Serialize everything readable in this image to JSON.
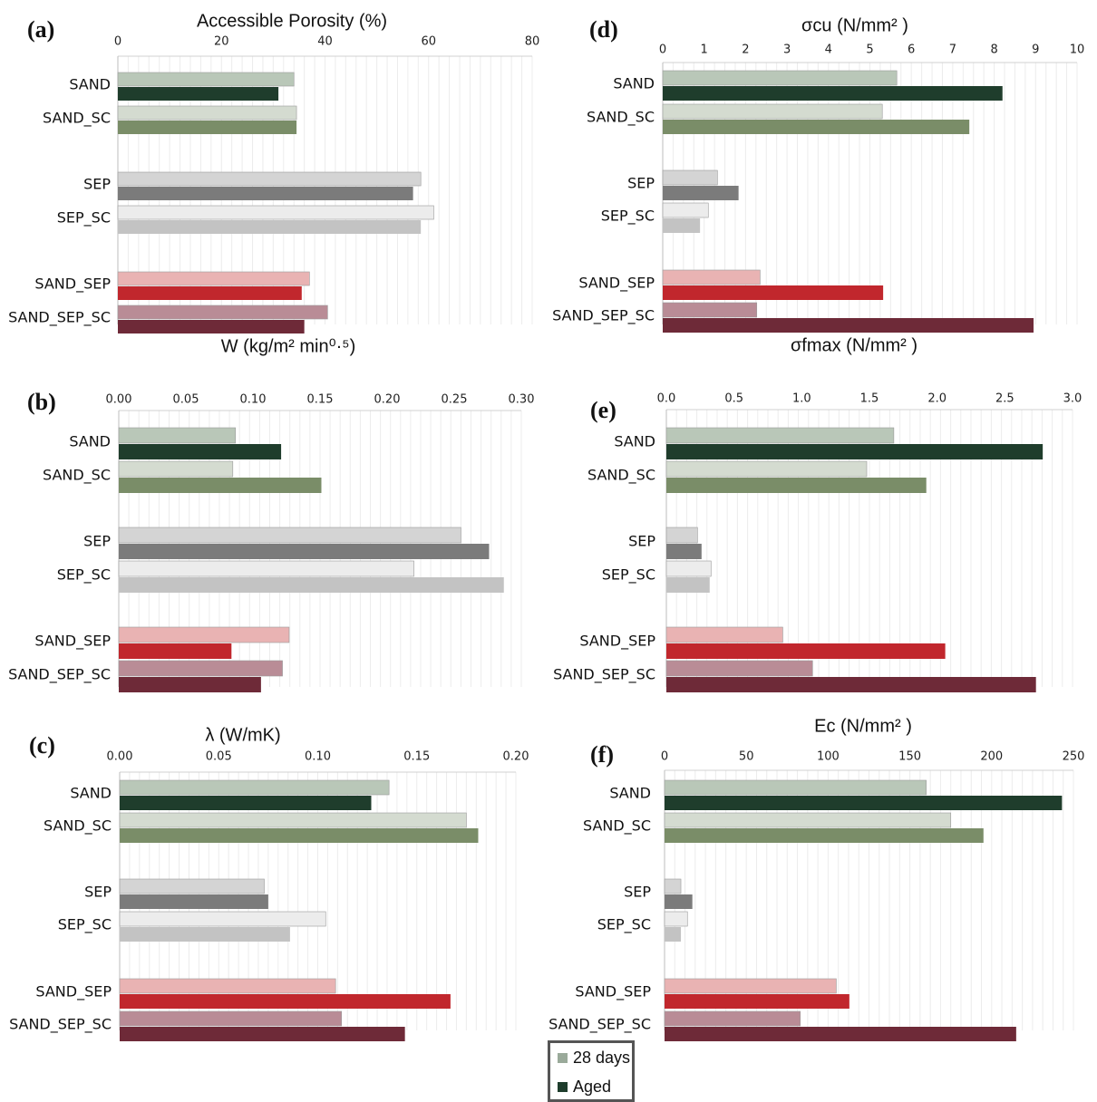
{
  "legend": {
    "items": [
      {
        "label": "28 days",
        "color": "#9aaa9a"
      },
      {
        "label": "Aged",
        "color": "#1e3d2c"
      }
    ]
  },
  "categories": [
    "SAND",
    "SAND_SC",
    "SEP",
    "SEP_SC",
    "SAND_SEP",
    "SAND_SEP_SC"
  ],
  "colors": {
    "SAND": {
      "d28": "#b9c7b8",
      "aged": "#1f3d2c"
    },
    "SAND_SC": {
      "d28": "#d4dbd0",
      "aged": "#7a8d68"
    },
    "SEP": {
      "d28": "#d4d4d4",
      "aged": "#7b7b7b"
    },
    "SEP_SC": {
      "d28": "#ececec",
      "aged": "#c3c3c3"
    },
    "SAND_SEP": {
      "d28": "#e9b3b3",
      "aged": "#c1272d"
    },
    "SAND_SEP_SC": {
      "d28": "#b98c96",
      "aged": "#6e2a38"
    }
  },
  "chart_data": [
    {
      "panel": "(a)",
      "type": "bar",
      "orientation": "horizontal",
      "title": "Accessible Porosity (%)",
      "xlim": [
        0,
        80
      ],
      "ticks": [
        "0",
        "20",
        "40",
        "60",
        "80"
      ],
      "categories": [
        "SAND",
        "SAND_SC",
        "SEP",
        "SEP_SC",
        "SAND_SEP",
        "SAND_SEP_SC"
      ],
      "series": [
        {
          "name": "28 days",
          "values": [
            34,
            34.5,
            58.5,
            61,
            37,
            40.5
          ]
        },
        {
          "name": "Aged",
          "values": [
            31,
            34.5,
            57,
            58.5,
            35.5,
            36
          ]
        }
      ]
    },
    {
      "panel": "(b)",
      "type": "bar",
      "orientation": "horizontal",
      "title": "W (kg/m² min⁰·⁵)",
      "xlim": [
        0,
        0.3
      ],
      "ticks": [
        "0.00",
        "0.05",
        "0.10",
        "0.15",
        "0.20",
        "0.25",
        "0.30"
      ],
      "categories": [
        "SAND",
        "SAND_SC",
        "SEP",
        "SEP_SC",
        "SAND_SEP",
        "SAND_SEP_SC"
      ],
      "series": [
        {
          "name": "28 days",
          "values": [
            0.087,
            0.085,
            0.255,
            0.22,
            0.127,
            0.122
          ]
        },
        {
          "name": "Aged",
          "values": [
            0.121,
            0.151,
            0.276,
            0.287,
            0.084,
            0.106
          ]
        }
      ]
    },
    {
      "panel": "(c)",
      "type": "bar",
      "orientation": "horizontal",
      "title": "λ (W/mK)",
      "xlim": [
        0,
        0.2
      ],
      "ticks": [
        "0.00",
        "0.05",
        "0.10",
        "0.15",
        "0.20"
      ],
      "categories": [
        "SAND",
        "SAND_SC",
        "SEP",
        "SEP_SC",
        "SAND_SEP",
        "SAND_SEP_SC"
      ],
      "series": [
        {
          "name": "28 days",
          "values": [
            0.136,
            0.175,
            0.073,
            0.104,
            0.109,
            0.112
          ]
        },
        {
          "name": "Aged",
          "values": [
            0.127,
            0.181,
            0.075,
            0.086,
            0.167,
            0.144
          ]
        }
      ]
    },
    {
      "panel": "(d)",
      "type": "bar",
      "orientation": "horizontal",
      "title": "σcu (N/mm² )",
      "xlim": [
        0,
        10
      ],
      "ticks": [
        "0",
        "1",
        "2",
        "3",
        "4",
        "5",
        "6",
        "7",
        "8",
        "9",
        "10"
      ],
      "categories": [
        "SAND",
        "SAND_SC",
        "SEP",
        "SEP_SC",
        "SAND_SEP",
        "SAND_SEP_SC"
      ],
      "series": [
        {
          "name": "28 days",
          "values": [
            5.65,
            5.3,
            1.32,
            1.1,
            2.35,
            2.27
          ]
        },
        {
          "name": "Aged",
          "values": [
            8.2,
            7.4,
            1.83,
            0.9,
            5.32,
            8.95
          ]
        }
      ]
    },
    {
      "panel": "(e)",
      "type": "bar",
      "orientation": "horizontal",
      "title": "σfmax (N/mm² )",
      "xlim": [
        0,
        3.0
      ],
      "ticks": [
        "0.0",
        "0.5",
        "1.0",
        "1.5",
        "2.0",
        "2.5",
        "3.0"
      ],
      "categories": [
        "SAND",
        "SAND_SC",
        "SEP",
        "SEP_SC",
        "SAND_SEP",
        "SAND_SEP_SC"
      ],
      "series": [
        {
          "name": "28 days",
          "values": [
            1.68,
            1.48,
            0.23,
            0.33,
            0.86,
            1.08
          ]
        },
        {
          "name": "Aged",
          "values": [
            2.78,
            1.92,
            0.26,
            0.32,
            2.06,
            2.73
          ]
        }
      ]
    },
    {
      "panel": "(f)",
      "type": "bar",
      "orientation": "horizontal",
      "title": "Ec (N/mm² )",
      "xlim": [
        0,
        250
      ],
      "ticks": [
        "0",
        "50",
        "100",
        "150",
        "200",
        "250"
      ],
      "categories": [
        "SAND",
        "SAND_SC",
        "SEP",
        "SEP_SC",
        "SAND_SEP",
        "SAND_SEP_SC"
      ],
      "series": [
        {
          "name": "28 days",
          "values": [
            160,
            175,
            10,
            14,
            105,
            83
          ]
        },
        {
          "name": "Aged",
          "values": [
            243,
            195,
            17,
            10,
            113,
            215
          ]
        }
      ]
    }
  ]
}
